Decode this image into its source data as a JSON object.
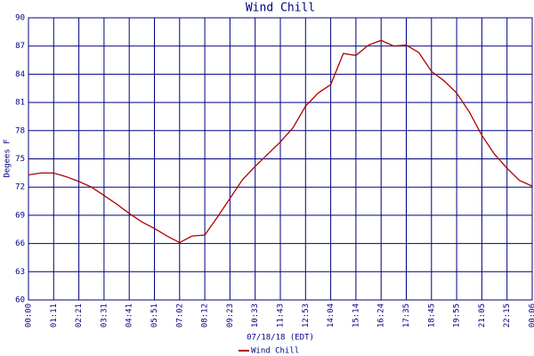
{
  "chart_data": {
    "type": "line",
    "title": "Wind Chill",
    "x_label": "07/18/18 (EDT)",
    "y_label": "Degees F",
    "categories": [
      "00:00",
      null,
      "01:11",
      null,
      "02:21",
      null,
      "03:31",
      null,
      "04:41",
      null,
      "05:51",
      null,
      "07:02",
      null,
      "08:12",
      null,
      "09:23",
      null,
      "10:33",
      null,
      "11:43",
      null,
      "12:53",
      null,
      "14:04",
      null,
      "15:14",
      null,
      "16:24",
      null,
      "17:35",
      null,
      "18:45",
      null,
      "19:55",
      null,
      "21:05",
      null,
      "22:15",
      null,
      "00:06"
    ],
    "series": [
      {
        "name": "Wind Chill",
        "color": "#b00000",
        "values": [
          73.3,
          73.5,
          73.5,
          73.1,
          72.6,
          72.0,
          71.1,
          70.2,
          69.2,
          68.3,
          67.6,
          66.8,
          66.1,
          66.8,
          66.9,
          68.8,
          70.8,
          72.8,
          74.2,
          75.5,
          76.8,
          78.3,
          80.6,
          82.0,
          82.9,
          86.2,
          86.0,
          87.1,
          87.6,
          87.0,
          87.1,
          86.3,
          84.3,
          83.3,
          82.0,
          80.0,
          77.5,
          75.5,
          74.0,
          72.7,
          72.1
        ]
      }
    ],
    "ylim": [
      60,
      90
    ],
    "yticks": [
      60,
      63,
      66,
      69,
      72,
      75,
      78,
      81,
      84,
      87,
      90
    ],
    "grid": true,
    "legend": "bottom"
  }
}
